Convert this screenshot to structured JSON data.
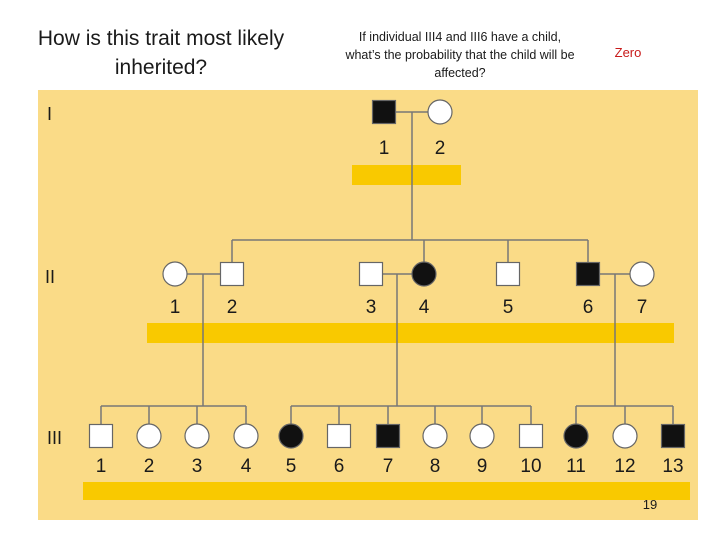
{
  "slide": {
    "title": "How is this trait most likely inherited?",
    "question": "If individual III4 and III6 have a child, what’s the probability that the child will be affected?",
    "answer": "Zero",
    "page_number": "19"
  },
  "colors": {
    "background": "#fadb87",
    "highlight_bar": "#f9c900",
    "answer_text": "#c81a1a",
    "line": "#777777",
    "affected": "#111111",
    "unaffected": "#ffffff"
  },
  "generations": [
    {
      "label": "I",
      "individuals": [
        {
          "number": "1",
          "sex": "male",
          "affected": true
        },
        {
          "number": "2",
          "sex": "female",
          "affected": false
        }
      ]
    },
    {
      "label": "II",
      "individuals": [
        {
          "number": "1",
          "sex": "female",
          "affected": false
        },
        {
          "number": "2",
          "sex": "male",
          "affected": false
        },
        {
          "number": "3",
          "sex": "male",
          "affected": false
        },
        {
          "number": "4",
          "sex": "female",
          "affected": true
        },
        {
          "number": "5",
          "sex": "male",
          "affected": false
        },
        {
          "number": "6",
          "sex": "male",
          "affected": true
        },
        {
          "number": "7",
          "sex": "female",
          "affected": false
        }
      ]
    },
    {
      "label": "III",
      "individuals": [
        {
          "number": "1",
          "sex": "male",
          "affected": false
        },
        {
          "number": "2",
          "sex": "female",
          "affected": false
        },
        {
          "number": "3",
          "sex": "female",
          "affected": false
        },
        {
          "number": "4",
          "sex": "female",
          "affected": false
        },
        {
          "number": "5",
          "sex": "female",
          "affected": true
        },
        {
          "number": "6",
          "sex": "male",
          "affected": false
        },
        {
          "number": "7",
          "sex": "male",
          "affected": true
        },
        {
          "number": "8",
          "sex": "female",
          "affected": false
        },
        {
          "number": "9",
          "sex": "female",
          "affected": false
        },
        {
          "number": "10",
          "sex": "male",
          "affected": false
        },
        {
          "number": "11",
          "sex": "female",
          "affected": true
        },
        {
          "number": "12",
          "sex": "female",
          "affected": false
        },
        {
          "number": "13",
          "sex": "male",
          "affected": true
        }
      ]
    }
  ]
}
